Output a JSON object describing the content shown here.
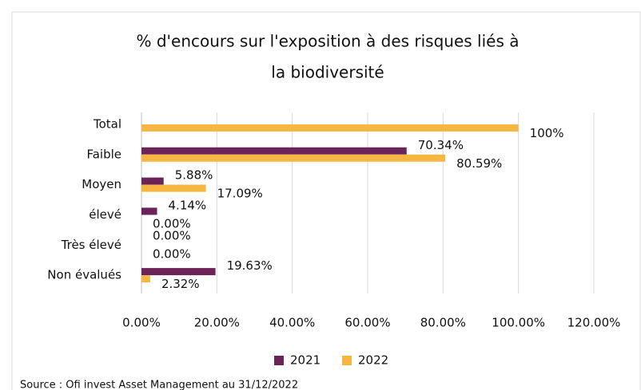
{
  "chart_data": {
    "type": "bar",
    "orientation": "horizontal",
    "title": [
      "% d'encours sur l'exposition à des risques liés à",
      "la biodiversité"
    ],
    "categories": [
      "Total",
      "Faible",
      "Moyen",
      "élevé",
      "Très élevé",
      "Non évalués"
    ],
    "series": [
      {
        "name": "2021",
        "color": "#6b2457",
        "values": [
          null,
          70.34,
          5.88,
          4.14,
          0,
          19.63
        ],
        "value_labels": [
          null,
          "70.34%",
          "5.88%",
          "4.14%",
          "0.00%",
          "19.63%"
        ]
      },
      {
        "name": "2022",
        "color": "#f5b642",
        "values": [
          100,
          80.59,
          17.09,
          0,
          0,
          2.32
        ],
        "value_labels": [
          "100%",
          "80.59%",
          "17.09%",
          "0.00%",
          "0.00%",
          "2.32%"
        ]
      }
    ],
    "xlim": [
      0,
      120
    ],
    "xticks": [
      {
        "value": 0,
        "label": "0.00%"
      },
      {
        "value": 20,
        "label": "20.00%"
      },
      {
        "value": 40,
        "label": "40.00%"
      },
      {
        "value": 60,
        "label": "60.00%"
      },
      {
        "value": 80,
        "label": "80.00%"
      },
      {
        "value": 100,
        "label": "100.00%"
      },
      {
        "value": 120,
        "label": "120.00%"
      }
    ],
    "grid": true,
    "legend": "bottom",
    "source": "Source : Ofi invest Asset Management au 31/12/2022"
  }
}
